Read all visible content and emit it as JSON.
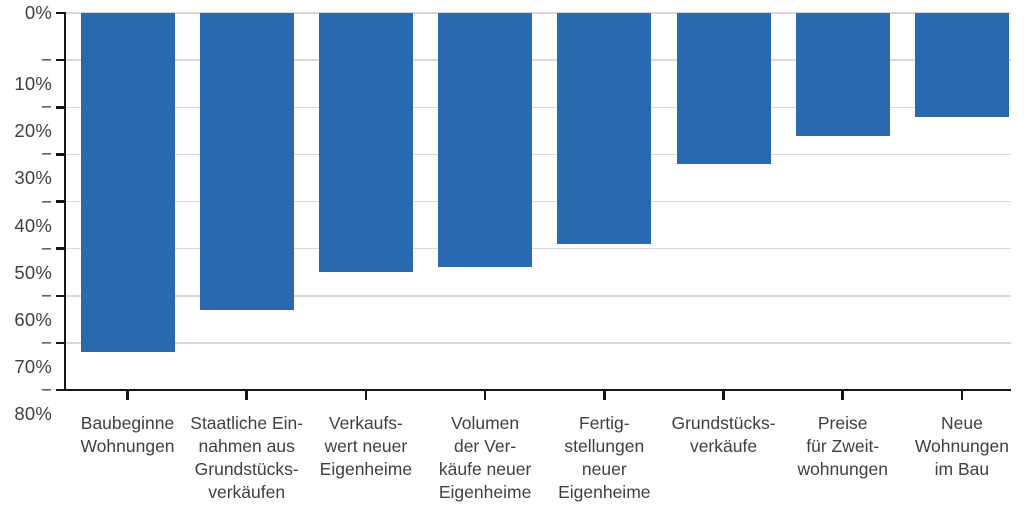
{
  "chart_data": {
    "type": "bar",
    "title": "",
    "xlabel": "",
    "ylabel": "",
    "unit": "%",
    "categories": [
      "Baubeginne Wohnungen",
      "Staatliche Einnahmen aus Grundstücksverkäufen",
      "Verkaufswert neuer Eigenheime",
      "Volumen der Verkäufe neuer Eigenheime",
      "Fertigstellungen neuer Eigenheime",
      "Grundstücksverkäufe",
      "Preise für Zweitwohnungen",
      "Neue Wohnungen im Bau"
    ],
    "category_labels": [
      "Baubeginne\nWohnungen",
      "Staatliche Ein-\nnahmen aus\nGrundstücks-\nverkäufen",
      "Verkaufs-\nwert neuer\nEigenheime",
      "Volumen\nder Ver-\nkäufe neuer\nEigenheime",
      "Fertig-\nstellungen\nneuer\nEigenheime",
      "Grundstücks-\nverkäufe",
      "Preise\nfür Zweit-\nwohnungen",
      "Neue\nWohnungen\nim Bau"
    ],
    "values": [
      -72,
      -63,
      -55,
      -54,
      -49,
      -32,
      -26,
      -22
    ],
    "ylim": [
      -80,
      0
    ],
    "ytick_step": 10,
    "ytick_labels": [
      "0%",
      "− 10%",
      "− 20%",
      "− 30%",
      "− 40%",
      "− 50%",
      "− 60%",
      "− 70%",
      "− 80%"
    ],
    "grid": "horizontal",
    "legend": false,
    "colors": {
      "bar": "#2a68b0",
      "axis": "#151515",
      "gridline": "#d8d8d8",
      "text": "#3f3f3f"
    }
  }
}
